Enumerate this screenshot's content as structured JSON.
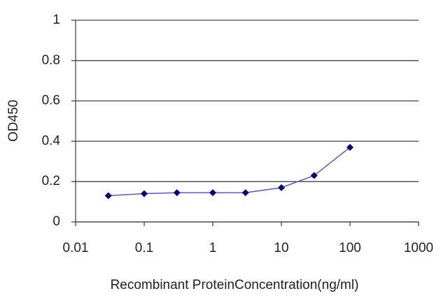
{
  "chart_data": {
    "type": "line",
    "x_label": "Recombinant ProteinConcentration(ng/ml)",
    "y_label": "OD450",
    "x": [
      0.03,
      0.1,
      0.3,
      1,
      3,
      10,
      30,
      100
    ],
    "values": [
      0.13,
      0.14,
      0.145,
      0.145,
      0.145,
      0.17,
      0.23,
      0.37
    ],
    "color": "#000080",
    "line_color": "#5a5ac8",
    "xscale": "log",
    "xlim": [
      0.01,
      1000
    ],
    "xticks": [
      0.01,
      0.1,
      1,
      10,
      100,
      1000
    ],
    "ylim": [
      0,
      1
    ],
    "yticks": [
      0,
      0.2,
      0.4,
      0.6,
      0.8,
      1
    ],
    "grid": true
  }
}
